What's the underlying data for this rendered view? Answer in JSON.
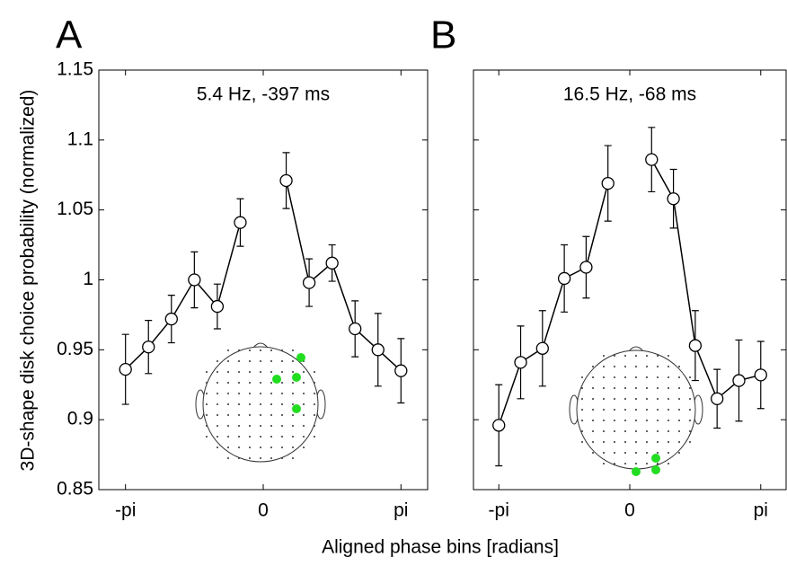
{
  "ylabel": "3D-shape disk choice probability (normalized)",
  "xlabel": "Aligned phase bins [radians]",
  "chart_data": [
    {
      "type": "line",
      "panel": "A",
      "title": "5.4 Hz, -397 ms",
      "x": [
        -3.1416,
        -2.618,
        -2.0944,
        -1.5708,
        -1.0472,
        -0.5236,
        0,
        0.5236,
        1.0472,
        1.5708,
        2.0944,
        2.618,
        3.1416
      ],
      "values": [
        0.936,
        0.952,
        0.972,
        1.0,
        0.981,
        1.041,
        null,
        1.071,
        0.998,
        1.012,
        0.965,
        0.95,
        0.935
      ],
      "errors": [
        0.025,
        0.019,
        0.017,
        0.02,
        0.016,
        0.017,
        null,
        0.02,
        0.017,
        0.013,
        0.02,
        0.026,
        0.023
      ],
      "color": "#000000",
      "xlim": [
        -3.75,
        3.75
      ],
      "xticks": [
        {
          "value": -3.1416,
          "label": "-pi"
        },
        0,
        {
          "value": 3.1416,
          "label": "pi"
        }
      ],
      "ylim": [
        0.85,
        1.15
      ],
      "yticks": [
        0.85,
        0.9,
        0.95,
        1,
        1.05,
        1.1,
        1.15
      ],
      "ytick_labels": true
    },
    {
      "type": "line",
      "panel": "B",
      "title": "16.5 Hz, -68 ms",
      "x": [
        -3.1416,
        -2.618,
        -2.0944,
        -1.5708,
        -1.0472,
        -0.5236,
        0,
        0.5236,
        1.0472,
        1.5708,
        2.0944,
        2.618,
        3.1416
      ],
      "values": [
        0.896,
        0.941,
        0.951,
        1.001,
        1.009,
        1.069,
        null,
        1.086,
        1.058,
        0.953,
        0.915,
        0.928,
        0.932
      ],
      "errors": [
        0.029,
        0.026,
        0.027,
        0.024,
        0.022,
        0.027,
        null,
        0.023,
        0.021,
        0.025,
        0.021,
        0.029,
        0.024
      ],
      "color": "#000000",
      "xlim": [
        -3.75,
        3.75
      ],
      "xticks": [
        {
          "value": -3.1416,
          "label": "-pi"
        },
        0,
        {
          "value": 3.1416,
          "label": "pi"
        }
      ],
      "ylim": [
        0.85,
        1.15
      ],
      "yticks": [
        0.85,
        0.9,
        0.95,
        1,
        1.05,
        1.1,
        1.15
      ],
      "ytick_labels": false
    }
  ]
}
